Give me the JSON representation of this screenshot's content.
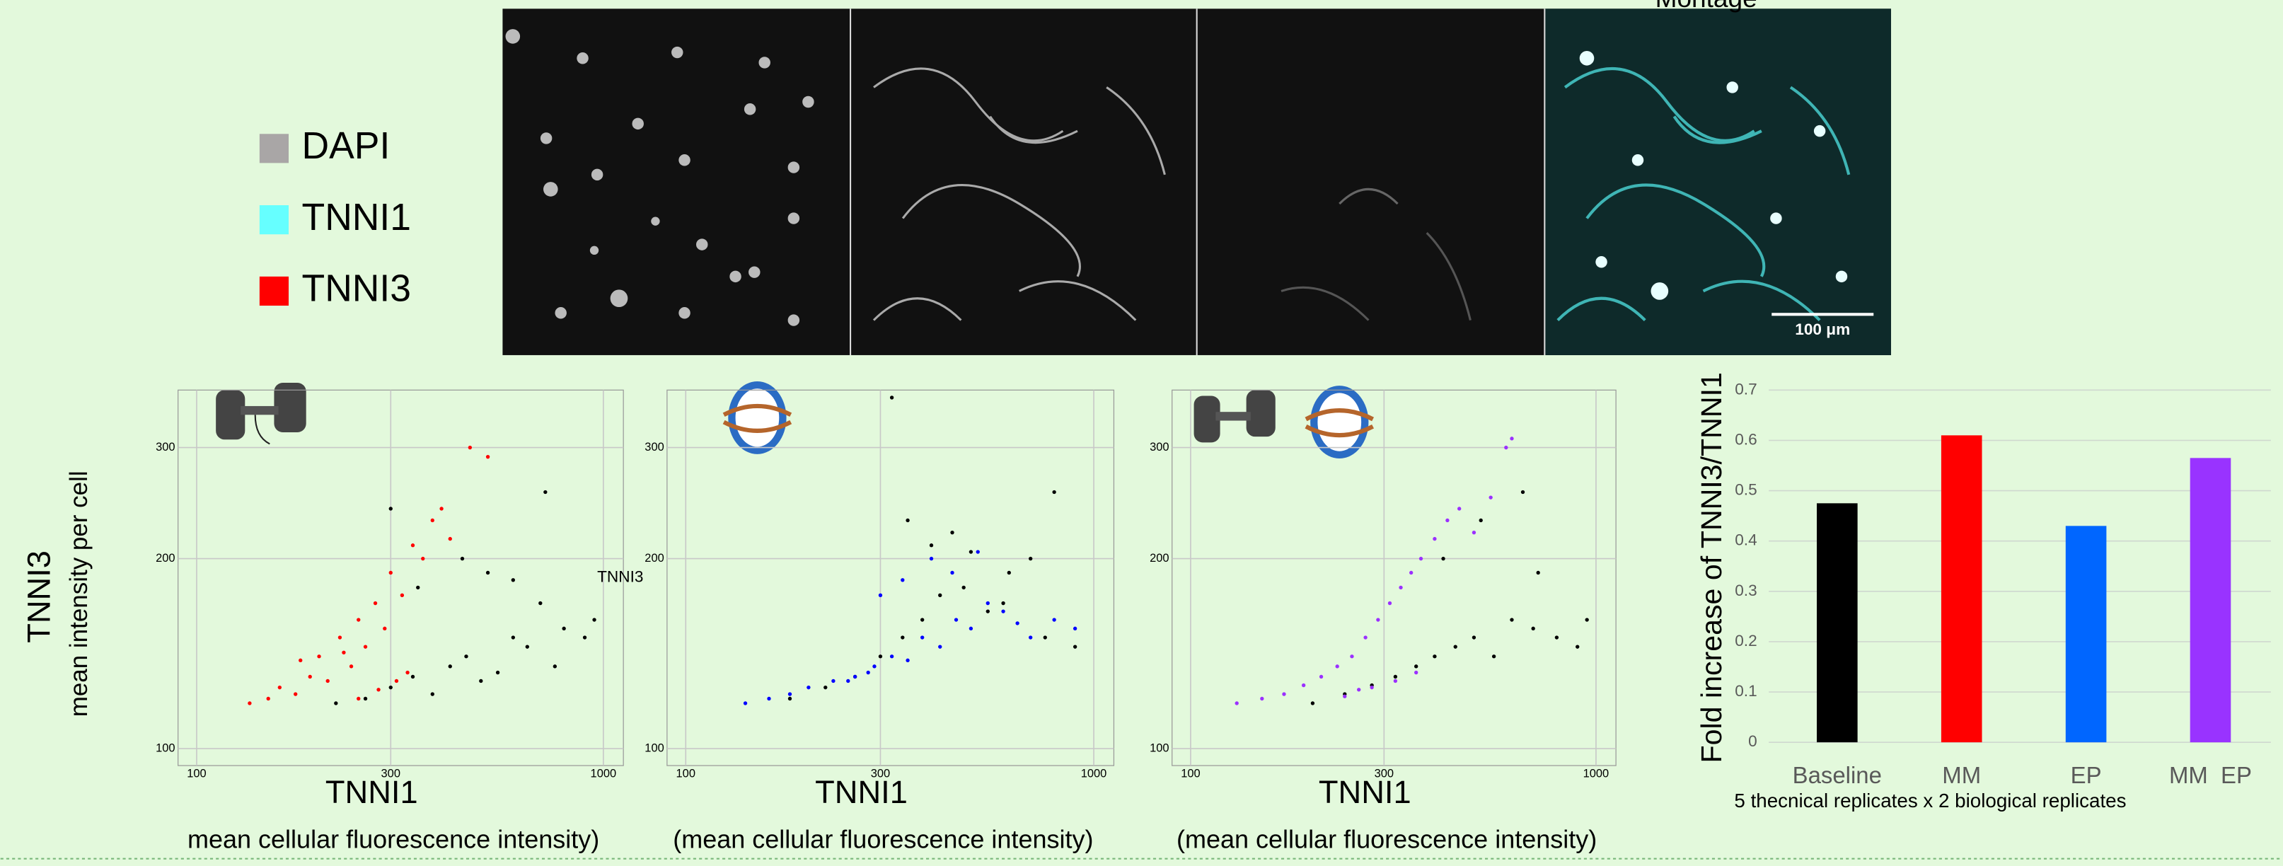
{
  "legend": {
    "items": [
      {
        "label": "DAPI",
        "color": "#a9a6a6"
      },
      {
        "label": "TNNI1",
        "color": "#66ffff"
      },
      {
        "label": "TNNI3",
        "color": "#ff0000"
      }
    ]
  },
  "image_panel": {
    "title": "Montage",
    "scale_bar": "100 μm"
  },
  "shared_y_axis": {
    "title": "TNNI3",
    "subtitle": "mean intensity per cell"
  },
  "chart_data": [
    {
      "type": "scatter",
      "x_label": "TNNI1",
      "x_sublabel": "mean cellular fluorescence intensity)",
      "annotation": "TNNI3",
      "log_x": true,
      "log_y": true,
      "grid": true,
      "xlim": [
        90,
        1120
      ],
      "ylim": [
        94,
        370
      ],
      "xticks": [
        100,
        300,
        1000
      ],
      "yticks": [
        100,
        200,
        300
      ],
      "series": [
        {
          "color": "#000000",
          "x": [
            220,
            260,
            300,
            340,
            380,
            420,
            460,
            500,
            550,
            600,
            650,
            700,
            800,
            900,
            950,
            350,
            450,
            520,
            300,
            720,
            760,
            600
          ],
          "values": [
            118,
            120,
            125,
            130,
            122,
            135,
            140,
            128,
            132,
            150,
            145,
            170,
            155,
            150,
            160,
            180,
            200,
            190,
            240,
            255,
            135,
            185
          ]
        },
        {
          "color": "#ff0000",
          "x": [
            135,
            150,
            160,
            175,
            190,
            200,
            210,
            225,
            240,
            250,
            260,
            275,
            290,
            300,
            320,
            340,
            360,
            380,
            400,
            420,
            470,
            520,
            250,
            280,
            310,
            330,
            180,
            230
          ],
          "values": [
            118,
            120,
            125,
            122,
            130,
            140,
            128,
            150,
            135,
            160,
            145,
            170,
            155,
            190,
            175,
            210,
            200,
            230,
            240,
            215,
            300,
            290,
            120,
            124,
            128,
            132,
            138,
            142
          ]
        }
      ]
    },
    {
      "type": "scatter",
      "x_label": "TNNI1",
      "x_sublabel": "(mean cellular fluorescence intensity)",
      "log_x": true,
      "log_y": true,
      "grid": true,
      "xlim": [
        90,
        1120
      ],
      "ylim": [
        94,
        370
      ],
      "xticks": [
        100,
        300,
        1000
      ],
      "yticks": [
        100,
        200,
        300
      ],
      "series": [
        {
          "color": "#000000",
          "x": [
            180,
            220,
            260,
            300,
            340,
            380,
            420,
            480,
            550,
            620,
            700,
            800,
            350,
            400,
            450,
            500,
            760,
            320,
            600,
            900
          ],
          "values": [
            120,
            125,
            130,
            140,
            150,
            160,
            175,
            180,
            165,
            190,
            200,
            255,
            230,
            210,
            220,
            205,
            150,
            360,
            170,
            145
          ]
        },
        {
          "color": "#0000ff",
          "x": [
            140,
            160,
            180,
            200,
            230,
            260,
            290,
            320,
            350,
            380,
            420,
            460,
            500,
            550,
            600,
            650,
            700,
            800,
            900,
            300,
            340,
            400,
            450,
            250,
            280,
            520
          ],
          "values": [
            118,
            120,
            122,
            125,
            128,
            130,
            135,
            140,
            138,
            150,
            145,
            160,
            155,
            170,
            165,
            158,
            150,
            160,
            155,
            175,
            185,
            200,
            190,
            128,
            132,
            205
          ]
        }
      ]
    },
    {
      "type": "scatter",
      "x_label": "TNNI1",
      "x_sublabel": "(mean cellular fluorescence intensity)",
      "log_x": true,
      "log_y": true,
      "grid": true,
      "xlim": [
        90,
        1120
      ],
      "ylim": [
        94,
        370
      ],
      "xticks": [
        100,
        300,
        1000
      ],
      "yticks": [
        100,
        200,
        300
      ],
      "series": [
        {
          "color": "#000000",
          "x": [
            200,
            240,
            280,
            320,
            360,
            400,
            450,
            500,
            560,
            620,
            700,
            800,
            900,
            950,
            420,
            520,
            660,
            720
          ],
          "values": [
            118,
            122,
            126,
            130,
            135,
            140,
            145,
            150,
            140,
            160,
            155,
            150,
            145,
            160,
            200,
            230,
            255,
            190
          ]
        },
        {
          "color": "#9b30ff",
          "x": [
            130,
            150,
            170,
            190,
            210,
            230,
            250,
            270,
            290,
            310,
            330,
            350,
            370,
            400,
            430,
            460,
            500,
            550,
            600,
            620,
            280,
            320,
            360,
            240,
            260
          ],
          "values": [
            118,
            120,
            122,
            126,
            130,
            135,
            140,
            150,
            160,
            170,
            180,
            190,
            200,
            215,
            230,
            240,
            220,
            250,
            300,
            310,
            125,
            128,
            132,
            121,
            124
          ]
        }
      ]
    },
    {
      "type": "bar",
      "y_label": "Fold increase of TNNI3/TNNI1",
      "note": "5 thecnical replicates x 2 biological replicates",
      "categories": [
        "Baseline",
        "MM",
        "EP",
        "MM  EP"
      ],
      "values": [
        0.475,
        0.61,
        0.43,
        0.565
      ],
      "colors": [
        "#000000",
        "#ff0000",
        "#0066ff",
        "#9933ff"
      ],
      "ylim": [
        0,
        0.7
      ],
      "yticks": [
        0,
        0.1,
        0.2,
        0.3,
        0.4,
        0.5,
        0.6,
        0.7
      ],
      "grid": true
    }
  ]
}
